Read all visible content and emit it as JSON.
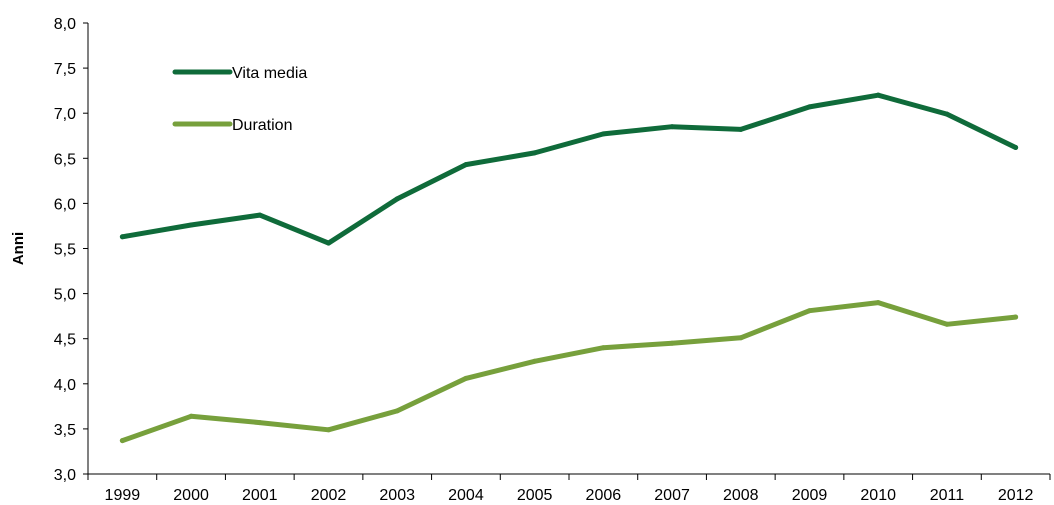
{
  "chart_data": {
    "type": "line",
    "title": "",
    "xlabel": "",
    "ylabel": "Anni",
    "ylim": [
      3.0,
      8.0
    ],
    "y_ticks": [
      "3,0",
      "3,5",
      "4,0",
      "4,5",
      "5,0",
      "5,5",
      "6,0",
      "6,5",
      "7,0",
      "7,5",
      "8,0"
    ],
    "grid": false,
    "legend_position": "top-left",
    "categories": [
      "1999",
      "2000",
      "2001",
      "2002",
      "2003",
      "2004",
      "2005",
      "2006",
      "2007",
      "2008",
      "2009",
      "2010",
      "2011",
      "2012"
    ],
    "series": [
      {
        "name": "Vita media",
        "color": "#0f6b3a",
        "values": [
          5.63,
          5.76,
          5.87,
          5.56,
          6.05,
          6.43,
          6.56,
          6.77,
          6.85,
          6.82,
          7.07,
          7.2,
          6.99,
          6.62
        ]
      },
      {
        "name": "Duration",
        "color": "#77a03c",
        "values": [
          3.37,
          3.64,
          3.57,
          3.49,
          3.7,
          4.06,
          4.25,
          4.4,
          4.45,
          4.51,
          4.81,
          4.9,
          4.66,
          4.74
        ]
      }
    ]
  }
}
